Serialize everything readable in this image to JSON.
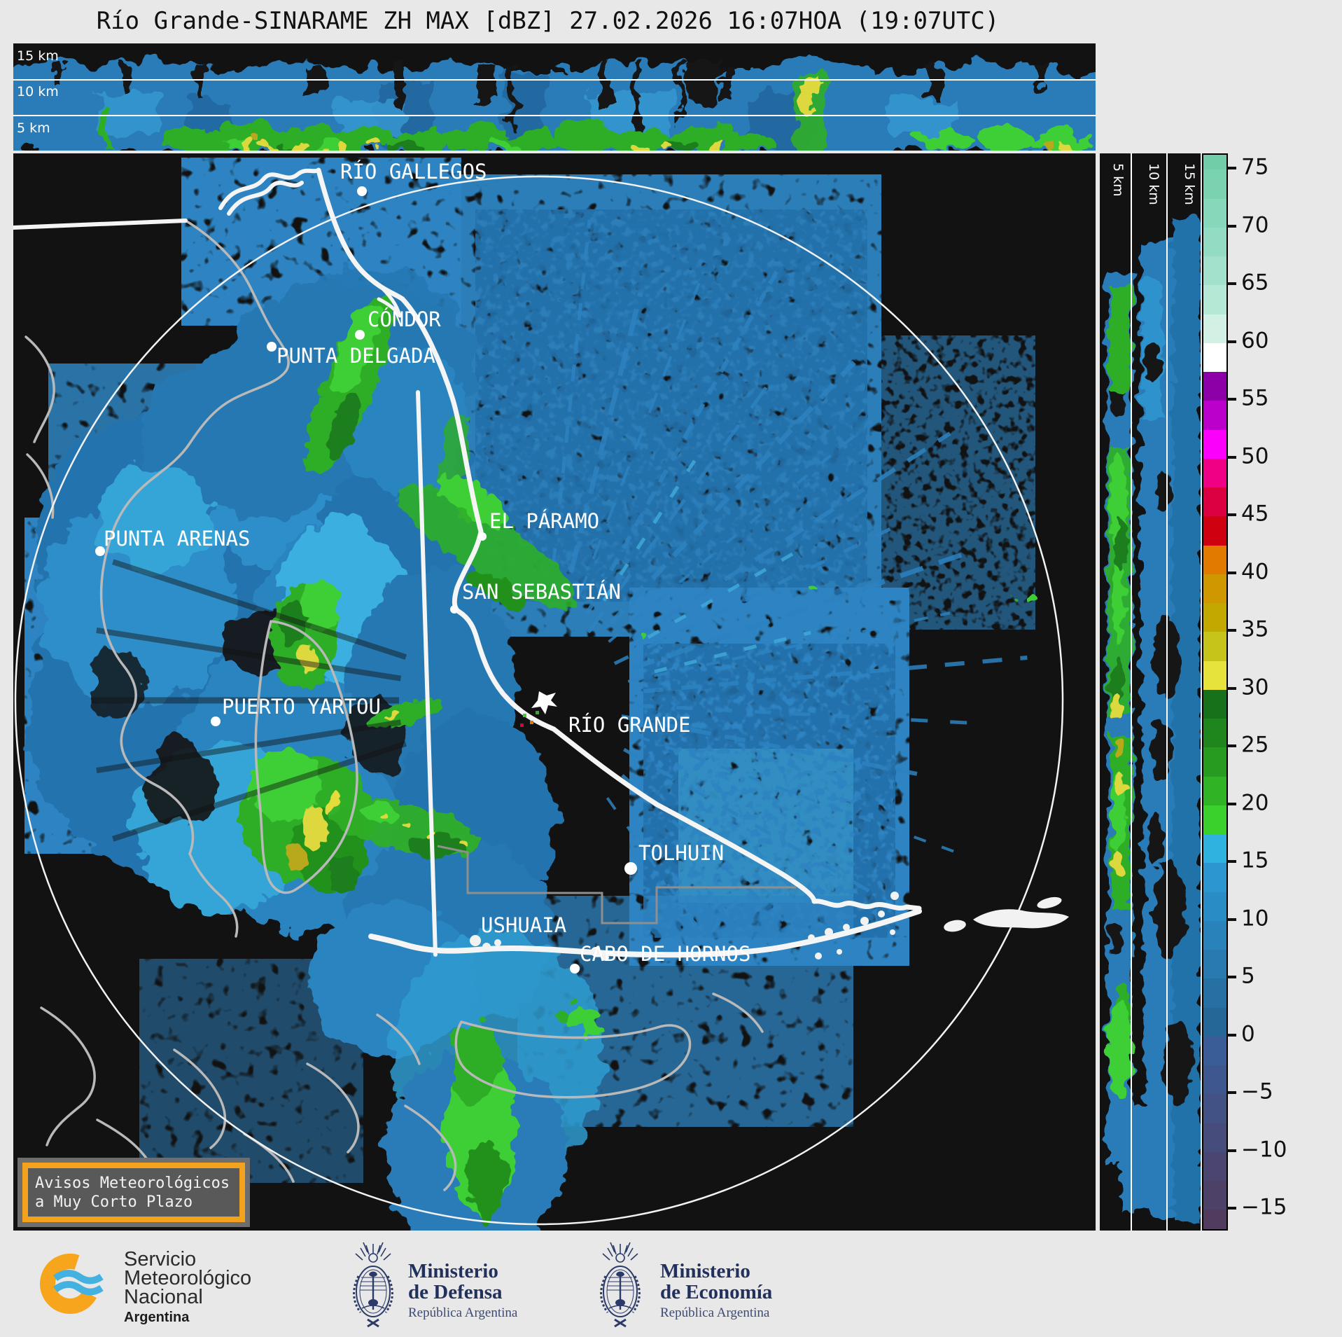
{
  "title": "Río Grande-SINARAME ZH MAX [dBZ] 27.02.2026 16:07HOA (19:07UTC)",
  "top_panel": {
    "description": "horizontal max-reflectivity cross section",
    "altitude_labels": [
      "15 km",
      "10 km",
      "5 km"
    ]
  },
  "right_panel": {
    "description": "vertical max-reflectivity cross section",
    "altitude_labels": [
      "5 km",
      "10 km",
      "15 km"
    ]
  },
  "colorbar": {
    "unit": "dBZ",
    "ticks": [
      {
        "v": 75,
        "label": "75"
      },
      {
        "v": 70,
        "label": "70"
      },
      {
        "v": 65,
        "label": "65"
      },
      {
        "v": 60,
        "label": "60"
      },
      {
        "v": 55,
        "label": "55"
      },
      {
        "v": 50,
        "label": "50"
      },
      {
        "v": 45,
        "label": "45"
      },
      {
        "v": 40,
        "label": "40"
      },
      {
        "v": 35,
        "label": "35"
      },
      {
        "v": 30,
        "label": "30"
      },
      {
        "v": 25,
        "label": "25"
      },
      {
        "v": 20,
        "label": "20"
      },
      {
        "v": 15,
        "label": "15"
      },
      {
        "v": 10,
        "label": "10"
      },
      {
        "v": 5,
        "label": "5"
      },
      {
        "v": 0,
        "label": "0"
      },
      {
        "v": -5,
        "label": "−5"
      },
      {
        "v": -10,
        "label": "−10"
      },
      {
        "v": -15,
        "label": "−15"
      }
    ],
    "segment_top_value": 77.5,
    "segment_step": 2.5,
    "segments": [
      "#70cda8",
      "#7bd2b1",
      "#87d7ba",
      "#93dcc3",
      "#a3e1cc",
      "#b6e8d6",
      "#d2f0e4",
      "#ffffff",
      "#8d00a8",
      "#bb00cc",
      "#fb00fb",
      "#ef0085",
      "#dc0040",
      "#cf0010",
      "#e27a00",
      "#cf9700",
      "#c3a800",
      "#c6c31b",
      "#e6e33c",
      "#17701a",
      "#1f851d",
      "#279a20",
      "#30b426",
      "#3bd12c",
      "#2fb2df",
      "#2b96d0",
      "#2a8cc5",
      "#2983ba",
      "#287aaf",
      "#2670a4",
      "#256898",
      "#3a5d97",
      "#3e578e",
      "#425285",
      "#464c7b",
      "#4a4671",
      "#4e4168",
      "#523c5e"
    ]
  },
  "map": {
    "places": [
      {
        "id": "rio-gallegos",
        "label": "RÍO GALLEGOS"
      },
      {
        "id": "condor",
        "label": "CÓNDOR"
      },
      {
        "id": "punta-delgada",
        "label": "PUNTA DELGADA"
      },
      {
        "id": "punta-arenas",
        "label": "PUNTA ARENAS"
      },
      {
        "id": "el-paramo",
        "label": "EL PÁRAMO"
      },
      {
        "id": "san-sebastian",
        "label": "SAN SEBASTIÁN"
      },
      {
        "id": "rio-grande",
        "label": "RÍO GRANDE"
      },
      {
        "id": "puerto-yartou",
        "label": "PUERTO YARTOU"
      },
      {
        "id": "tolhuin",
        "label": "TOLHUIN"
      },
      {
        "id": "ushuaia",
        "label": "USHUAIA"
      },
      {
        "id": "cabo-de-hornos",
        "label": "CABO DE HORNOS"
      }
    ]
  },
  "alert_box": {
    "line1": "Avisos Meteorológicos",
    "line2": "a Muy Corto Plazo",
    "border_color": "#f2a21c"
  },
  "footer": {
    "smn": {
      "line1": "Servicio",
      "line2": "Meteorológico",
      "line3": "Nacional",
      "country": "Argentina"
    },
    "defensa": {
      "line1": "Ministerio",
      "line2": "de Defensa",
      "sub": "República Argentina"
    },
    "economia": {
      "line1": "Ministerio",
      "line2": "de Economía",
      "sub": "República Argentina"
    }
  }
}
